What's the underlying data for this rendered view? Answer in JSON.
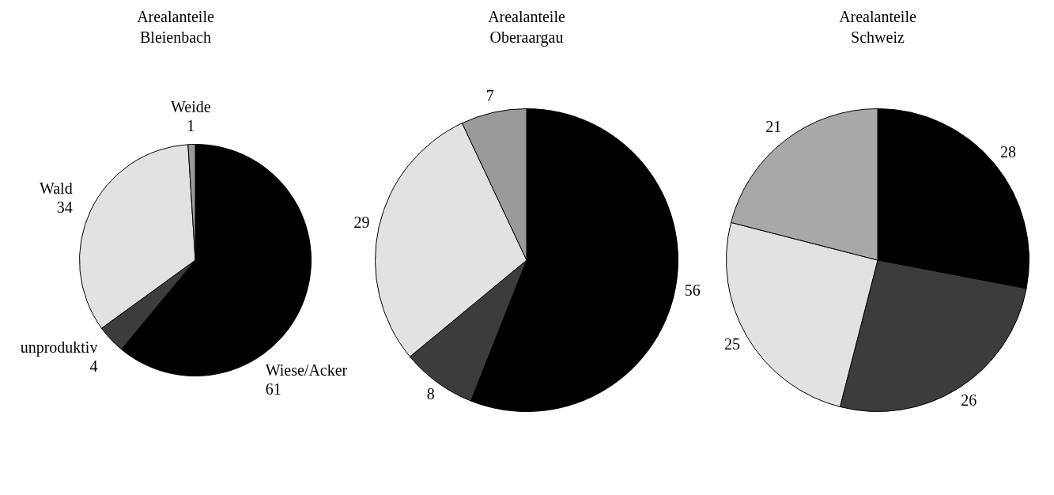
{
  "chart_data": [
    {
      "type": "pie",
      "title": "Arealanteile Bleienbach",
      "categories": [
        "Wiese/Acker",
        "unproduktiv",
        "Wald",
        "Weide"
      ],
      "values": [
        61,
        4,
        34,
        1
      ],
      "colors": [
        "#000000",
        "#3c3c3c",
        "#e2e2e2",
        "#9a9a9a"
      ],
      "data_labels": true,
      "legend": false
    },
    {
      "type": "pie",
      "title": "Arealanteile Oberaargau",
      "categories": [
        null,
        null,
        null,
        null
      ],
      "values": [
        56,
        8,
        29,
        7
      ],
      "colors": [
        "#000000",
        "#3c3c3c",
        "#e2e2e2",
        "#9a9a9a"
      ],
      "data_labels": true,
      "legend": false
    },
    {
      "type": "pie",
      "title": "Arealanteile Schweiz",
      "categories": [
        null,
        null,
        null,
        null
      ],
      "values": [
        28,
        26,
        25,
        21
      ],
      "colors": [
        "#000000",
        "#3c3c3c",
        "#e2e2e2",
        "#a8a8a8"
      ],
      "data_labels": true,
      "legend": false
    }
  ]
}
